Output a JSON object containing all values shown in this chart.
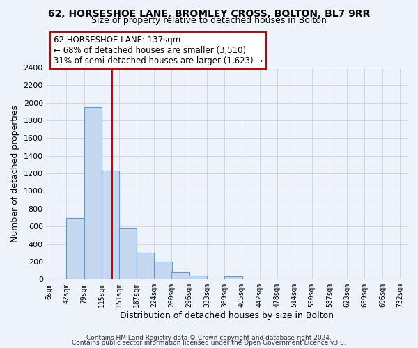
{
  "title": "62, HORSESHOE LANE, BROMLEY CROSS, BOLTON, BL7 9RR",
  "subtitle": "Size of property relative to detached houses in Bolton",
  "xlabel": "Distribution of detached houses by size in Bolton",
  "ylabel": "Number of detached properties",
  "bar_left_edges": [
    6,
    42,
    79,
    115,
    151,
    187,
    224,
    260,
    296,
    333,
    369,
    405,
    442,
    478,
    514,
    550,
    587,
    623,
    659,
    696
  ],
  "bar_heights": [
    0,
    700,
    1950,
    1230,
    575,
    305,
    200,
    80,
    45,
    0,
    35,
    0,
    0,
    0,
    0,
    0,
    0,
    0,
    0,
    0
  ],
  "bin_width": 37,
  "bar_color": "#c5d8f0",
  "bar_edge_color": "#5b9bd5",
  "vline_x": 137,
  "vline_color": "#cc0000",
  "ylim": [
    0,
    2400
  ],
  "yticks": [
    0,
    200,
    400,
    600,
    800,
    1000,
    1200,
    1400,
    1600,
    1800,
    2000,
    2200,
    2400
  ],
  "xtick_labels": [
    "6sqm",
    "42sqm",
    "79sqm",
    "115sqm",
    "151sqm",
    "187sqm",
    "224sqm",
    "260sqm",
    "296sqm",
    "333sqm",
    "369sqm",
    "405sqm",
    "442sqm",
    "478sqm",
    "514sqm",
    "550sqm",
    "587sqm",
    "623sqm",
    "659sqm",
    "696sqm",
    "732sqm"
  ],
  "xtick_positions": [
    6,
    42,
    79,
    115,
    151,
    187,
    224,
    260,
    296,
    333,
    369,
    405,
    442,
    478,
    514,
    550,
    587,
    623,
    659,
    696,
    732
  ],
  "annotation_title": "62 HORSESHOE LANE: 137sqm",
  "annotation_line1": "← 68% of detached houses are smaller (3,510)",
  "annotation_line2": "31% of semi-detached houses are larger (1,623) →",
  "annotation_box_color": "#ffffff",
  "annotation_box_edge": "#cc0000",
  "footer1": "Contains HM Land Registry data © Crown copyright and database right 2024.",
  "footer2": "Contains public sector information licensed under the Open Government Licence v3.0.",
  "grid_color": "#d0d8e8",
  "background_color": "#eef2fa"
}
